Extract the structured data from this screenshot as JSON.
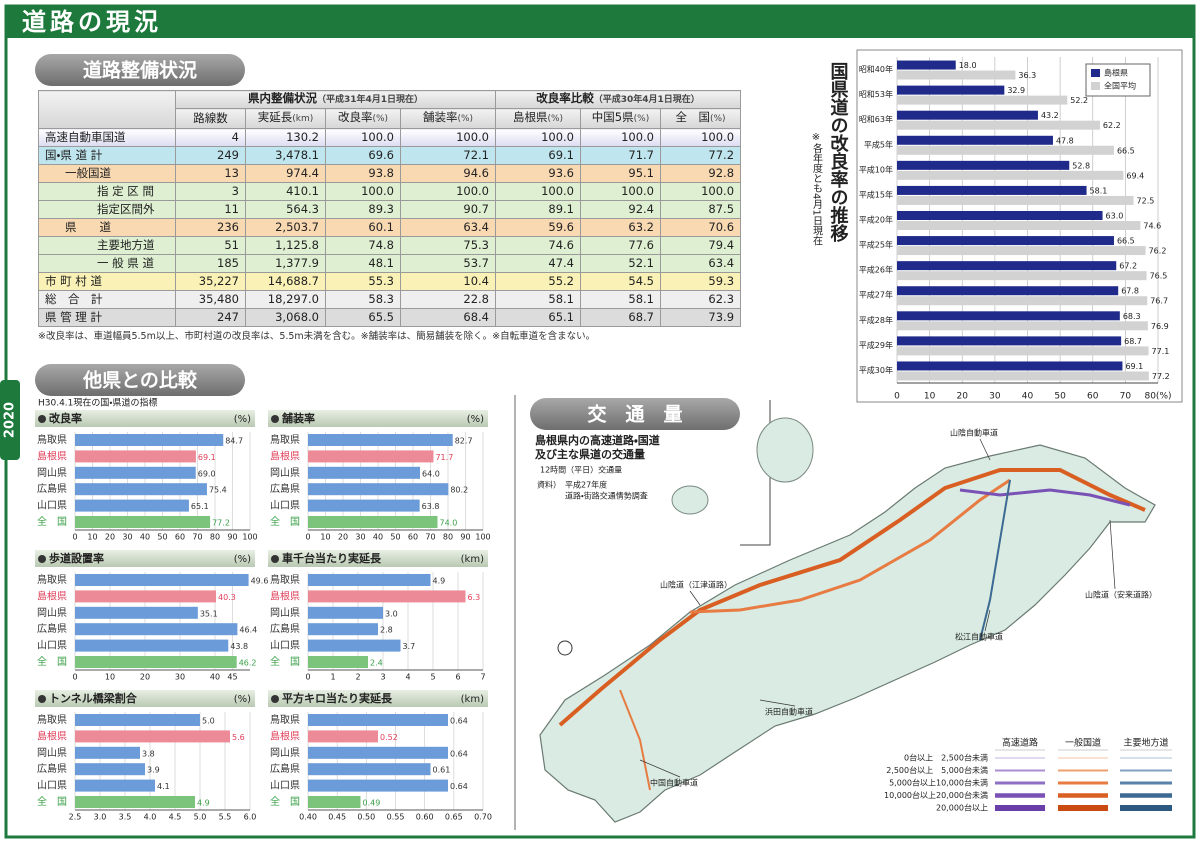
{
  "header": {
    "title": "道路の現況",
    "year": "2020"
  },
  "road_status": {
    "section": "道路整備状況",
    "table": {
      "group_headers": [
        {
          "title": "県内整備状況",
          "note": "（平成31年4月1日現在）"
        },
        {
          "title": "改良率比較",
          "note": "（平成30年4月1日現在）"
        }
      ],
      "columns": [
        {
          "name": "路線数"
        },
        {
          "name": "実延長",
          "unit": "(km)"
        },
        {
          "name": "改良率",
          "unit": "(%)"
        },
        {
          "name": "舗装率",
          "unit": "(%)"
        },
        {
          "name": "島根県",
          "unit": "(%)"
        },
        {
          "name": "中国5県",
          "unit": "(%)"
        },
        {
          "name": "全　国",
          "unit": "(%)"
        }
      ],
      "rows": [
        {
          "label": "高速自動車国道",
          "cells": [
            "4",
            "130.2",
            "100.0",
            "100.0",
            "100.0",
            "100.0",
            "100.0"
          ]
        },
        {
          "label": "国・県 道 計",
          "cells": [
            "249",
            "3,478.1",
            "69.6",
            "72.1",
            "69.1",
            "71.7",
            "77.2"
          ]
        },
        {
          "label": "一般国道",
          "cells": [
            "13",
            "974.4",
            "93.8",
            "94.6",
            "93.6",
            "95.1",
            "92.8"
          ]
        },
        {
          "label": "指 定 区 間",
          "cells": [
            "3",
            "410.1",
            "100.0",
            "100.0",
            "100.0",
            "100.0",
            "100.0"
          ]
        },
        {
          "label": "指定区間外",
          "cells": [
            "11",
            "564.3",
            "89.3",
            "90.7",
            "89.1",
            "92.4",
            "87.5"
          ]
        },
        {
          "label": "県　　道",
          "cells": [
            "236",
            "2,503.7",
            "60.1",
            "63.4",
            "59.6",
            "63.2",
            "70.6"
          ]
        },
        {
          "label": "主要地方道",
          "cells": [
            "51",
            "1,125.8",
            "74.8",
            "75.3",
            "74.6",
            "77.6",
            "79.4"
          ]
        },
        {
          "label": "一 般 県 道",
          "cells": [
            "185",
            "1,377.9",
            "48.1",
            "53.7",
            "47.4",
            "52.1",
            "63.4"
          ]
        },
        {
          "label": "市 町 村 道",
          "cells": [
            "35,227",
            "14,688.7",
            "55.3",
            "10.4",
            "55.2",
            "54.5",
            "59.3"
          ]
        },
        {
          "label": "総　合　計",
          "cells": [
            "35,480",
            "18,297.0",
            "58.3",
            "22.8",
            "58.1",
            "58.1",
            "62.3"
          ]
        },
        {
          "label": "県 管 理 計",
          "cells": [
            "247",
            "3,068.0",
            "65.5",
            "68.4",
            "65.1",
            "68.7",
            "73.9"
          ]
        }
      ],
      "footnote": "※改良率は、車道幅員5.5m以上、市町村道の改良率は、5.5m未満を含む。※舗装率は、簡易舗装を除く。※自転車道を含まない。"
    }
  },
  "comparison": {
    "section": "他県との比較",
    "subtitle": "H30.4.1現在の国・県道の指標"
  },
  "chart_data": [
    {
      "type": "bar",
      "orientation": "horizontal",
      "title": "国県道の改良率の推移",
      "subtitle": "※各年度とも4月1日現在",
      "categories": [
        "昭和40年",
        "昭和53年",
        "昭和63年",
        "平成5年",
        "平成10年",
        "平成15年",
        "平成20年",
        "平成25年",
        "平成26年",
        "平成27年",
        "平成28年",
        "平成29年",
        "平成30年"
      ],
      "series": [
        {
          "name": "島根県",
          "color": "#1f2a8a",
          "values": [
            18.0,
            32.9,
            43.2,
            47.8,
            52.8,
            58.1,
            63.0,
            66.5,
            67.2,
            67.8,
            68.3,
            68.7,
            69.1
          ],
          "value_labels": [
            "18.0",
            "32.9",
            "43.2",
            "47.8",
            "52.8",
            "58.1",
            "63.0",
            "66.5",
            "67.2",
            "67.8",
            "68.3",
            "68.7",
            "69.1"
          ]
        },
        {
          "name": "全国平均",
          "color": "#d2d2d2",
          "values": [
            36.3,
            52.2,
            62.2,
            66.5,
            69.4,
            72.5,
            74.6,
            76.2,
            76.5,
            76.7,
            76.9,
            77.1,
            77.2
          ],
          "value_labels": [
            "36.3",
            "52.2",
            "62.2",
            "66.5",
            "69.4",
            "72.5",
            "74.6",
            "76.2",
            "76.5",
            "76.7",
            "76.9",
            "77.1",
            "77.2"
          ]
        }
      ],
      "xlim": [
        0,
        80
      ],
      "xticks": [
        0,
        10,
        20,
        30,
        40,
        50,
        60,
        70,
        {
          "value": 80,
          "label": "80(%)"
        }
      ],
      "grid": true,
      "legend": "top-right"
    },
    {
      "type": "bar",
      "orientation": "horizontal",
      "title": "改良率",
      "unit": "(%)",
      "categories": [
        "鳥取県",
        "島根県",
        "岡山県",
        "広島県",
        "山口県",
        "全　国"
      ],
      "values": [
        84.7,
        69.1,
        69.0,
        75.4,
        65.1,
        77.2
      ],
      "value_labels": [
        "84.7",
        "69.1",
        "69.0",
        "75.4",
        "65.1",
        "77.2"
      ],
      "colors": [
        "#6b9bd8",
        "#ec8a98",
        "#6b9bd8",
        "#6b9bd8",
        "#6b9bd8",
        "#7cc47c"
      ],
      "label_colors": [
        "#333333",
        "#e0405a",
        "#333333",
        "#333333",
        "#333333",
        "#3aa048"
      ],
      "xlim": [
        0,
        100
      ],
      "xticks": [
        0,
        10,
        20,
        30,
        40,
        50,
        60,
        70,
        80,
        90,
        100
      ],
      "grid": true
    },
    {
      "type": "bar",
      "orientation": "horizontal",
      "title": "舗装率",
      "unit": "(%)",
      "categories": [
        "鳥取県",
        "島根県",
        "岡山県",
        "広島県",
        "山口県",
        "全　国"
      ],
      "values": [
        82.7,
        71.7,
        64.0,
        80.2,
        63.8,
        74.0
      ],
      "value_labels": [
        "82.7",
        "71.7",
        "64.0",
        "80.2",
        "63.8",
        "74.0"
      ],
      "colors": [
        "#6b9bd8",
        "#ec8a98",
        "#6b9bd8",
        "#6b9bd8",
        "#6b9bd8",
        "#7cc47c"
      ],
      "label_colors": [
        "#333333",
        "#e0405a",
        "#333333",
        "#333333",
        "#333333",
        "#3aa048"
      ],
      "xlim": [
        0,
        100
      ],
      "xticks": [
        0,
        10,
        20,
        30,
        40,
        50,
        60,
        70,
        80,
        90,
        100
      ],
      "grid": true
    },
    {
      "type": "bar",
      "orientation": "horizontal",
      "title": "歩道設置率",
      "unit": "(%)",
      "categories": [
        "鳥取県",
        "島根県",
        "岡山県",
        "広島県",
        "山口県",
        "全　国"
      ],
      "values": [
        49.6,
        40.3,
        35.1,
        46.4,
        43.8,
        46.2
      ],
      "value_labels": [
        "49.6",
        "40.3",
        "35.1",
        "46.4",
        "43.8",
        "46.2"
      ],
      "colors": [
        "#6b9bd8",
        "#ec8a98",
        "#6b9bd8",
        "#6b9bd8",
        "#6b9bd8",
        "#7cc47c"
      ],
      "label_colors": [
        "#333333",
        "#e0405a",
        "#333333",
        "#333333",
        "#333333",
        "#3aa048"
      ],
      "xlim": [
        0,
        50
      ],
      "xticks": [
        0,
        10,
        20,
        30,
        40,
        45
      ],
      "grid": true
    },
    {
      "type": "bar",
      "orientation": "horizontal",
      "title": "車千台当たり実延長",
      "unit": "(km)",
      "categories": [
        "鳥取県",
        "島根県",
        "岡山県",
        "広島県",
        "山口県",
        "全　国"
      ],
      "values": [
        4.9,
        6.3,
        3.0,
        2.8,
        3.7,
        2.4
      ],
      "value_labels": [
        "4.9",
        "6.3",
        "3.0",
        "2.8",
        "3.7",
        "2.4"
      ],
      "colors": [
        "#6b9bd8",
        "#ec8a98",
        "#6b9bd8",
        "#6b9bd8",
        "#6b9bd8",
        "#7cc47c"
      ],
      "label_colors": [
        "#333333",
        "#e0405a",
        "#333333",
        "#333333",
        "#333333",
        "#3aa048"
      ],
      "xlim": [
        0,
        7
      ],
      "xticks": [
        0,
        1,
        2,
        3,
        4,
        5,
        6,
        7
      ],
      "grid": true
    },
    {
      "type": "bar",
      "orientation": "horizontal",
      "title": "トンネル橋梁割合",
      "unit": "(%)",
      "categories": [
        "鳥取県",
        "島根県",
        "岡山県",
        "広島県",
        "山口県",
        "全　国"
      ],
      "values": [
        5.0,
        5.6,
        3.8,
        3.9,
        4.1,
        4.9
      ],
      "value_labels": [
        "5.0",
        "5.6",
        "3.8",
        "3.9",
        "4.1",
        "4.9"
      ],
      "colors": [
        "#6b9bd8",
        "#ec8a98",
        "#6b9bd8",
        "#6b9bd8",
        "#6b9bd8",
        "#7cc47c"
      ],
      "label_colors": [
        "#333333",
        "#e0405a",
        "#333333",
        "#333333",
        "#333333",
        "#3aa048"
      ],
      "xlim": [
        2.5,
        6.0
      ],
      "xticks": [
        2.5,
        {
          "value": 3.0,
          "label": "3.0"
        },
        3.5,
        {
          "value": 4.0,
          "label": "4.0"
        },
        4.5,
        {
          "value": 5.0,
          "label": "5.0"
        },
        5.5,
        {
          "value": 6.0,
          "label": "6.0"
        }
      ],
      "grid": true
    },
    {
      "type": "bar",
      "orientation": "horizontal",
      "title": "平方キロ当たり実延長",
      "unit": "(km)",
      "categories": [
        "鳥取県",
        "島根県",
        "岡山県",
        "広島県",
        "山口県",
        "全　国"
      ],
      "values": [
        0.64,
        0.52,
        0.64,
        0.61,
        0.64,
        0.49
      ],
      "value_labels": [
        "0.64",
        "0.52",
        "0.64",
        "0.61",
        "0.64",
        "0.49"
      ],
      "colors": [
        "#6b9bd8",
        "#ec8a98",
        "#6b9bd8",
        "#6b9bd8",
        "#6b9bd8",
        "#7cc47c"
      ],
      "label_colors": [
        "#333333",
        "#e0405a",
        "#333333",
        "#333333",
        "#333333",
        "#3aa048"
      ],
      "xlim": [
        0.4,
        0.7
      ],
      "xticks": [
        {
          "value": 0.4,
          "label": "0.40"
        },
        0.45,
        {
          "value": 0.5,
          "label": "0.50"
        },
        0.55,
        {
          "value": 0.6,
          "label": "0.60"
        },
        0.65,
        {
          "value": 0.7,
          "label": "0.70"
        }
      ],
      "grid": true
    }
  ],
  "traffic": {
    "section": "交　通　量",
    "title_lines": [
      "島根県内の高速道路・国道",
      "及び主な県道の交通量"
    ],
    "subtitle": "12時間（平日）交通量",
    "source_label": "資料）",
    "source_lines": [
      "平成27年度",
      "道路・街路交通情勢調査"
    ],
    "road_labels": [
      "山陰自動車道",
      "山陰道（江津道路）",
      "山陰道（安来道路）",
      "松江自動車道",
      "浜田自動車道",
      "中国自動車道"
    ],
    "legend": {
      "columns": [
        {
          "name": "高速道路",
          "colors": [
            "#c3b3df",
            "#a98fd2",
            "#8e6fc3",
            "#7a52b5",
            "#6a3ea8"
          ]
        },
        {
          "name": "一般国道",
          "colors": [
            "#f3c5a4",
            "#eea06e",
            "#e77b42",
            "#d95e22",
            "#c94b12"
          ]
        },
        {
          "name": "主要地方道",
          "colors": [
            "#a9c1d9",
            "#82a1c1",
            "#5a82aa",
            "#3d6a92",
            "#2b5982"
          ]
        }
      ],
      "rows": [
        "0台以上　2,500台未満",
        "2,500台以上　5,000台未満",
        "5,000台以上10,000台未満",
        "10,000台以上20,000台未満",
        "20,000台以上"
      ]
    }
  }
}
